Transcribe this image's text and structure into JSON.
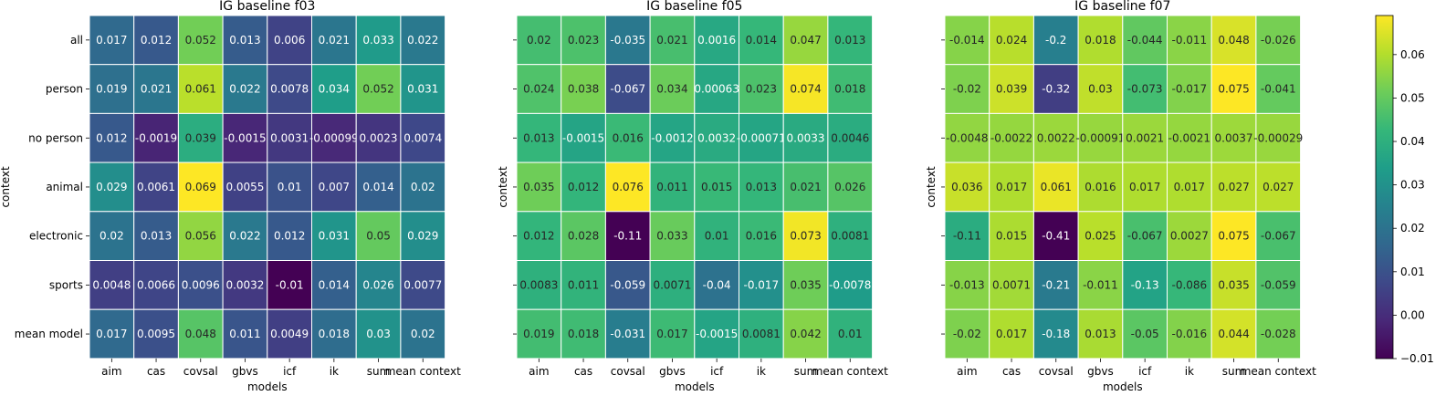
{
  "chart_data": [
    {
      "type": "heatmap",
      "title": "IG baseline f03",
      "xlabel": "models",
      "ylabel": "context",
      "categories_x": [
        "aim",
        "cas",
        "covsal",
        "gbvs",
        "icf",
        "ik",
        "sum",
        "mean context"
      ],
      "categories_y": [
        "all",
        "person",
        "no person",
        "animal",
        "electronic",
        "sports",
        "mean model"
      ],
      "values": [
        [
          0.017,
          0.012,
          0.052,
          0.013,
          0.006,
          0.021,
          0.033,
          0.022
        ],
        [
          0.019,
          0.021,
          0.061,
          0.022,
          0.0078,
          0.034,
          0.052,
          0.031
        ],
        [
          0.012,
          -0.0019,
          0.039,
          -0.0015,
          0.0031,
          -0.00099,
          0.0023,
          0.0074
        ],
        [
          0.029,
          0.0061,
          0.069,
          0.0055,
          0.01,
          0.007,
          0.014,
          0.02
        ],
        [
          0.02,
          0.013,
          0.056,
          0.022,
          0.012,
          0.031,
          0.05,
          0.029
        ],
        [
          0.0048,
          0.0066,
          0.0096,
          0.0032,
          -0.01,
          0.014,
          0.026,
          0.0077
        ],
        [
          0.017,
          0.0095,
          0.048,
          0.011,
          0.0049,
          0.018,
          0.03,
          0.02
        ]
      ],
      "labels": [
        [
          "0.017",
          "0.012",
          "0.052",
          "0.013",
          "0.006",
          "0.021",
          "0.033",
          "0.022"
        ],
        [
          "0.019",
          "0.021",
          "0.061",
          "0.022",
          "0.0078",
          "0.034",
          "0.052",
          "0.031"
        ],
        [
          "0.012",
          "-0.0019",
          "0.039",
          "-0.0015",
          "0.0031",
          "-0.00099",
          "0.0023",
          "0.0074"
        ],
        [
          "0.029",
          "0.0061",
          "0.069",
          "0.0055",
          "0.01",
          "0.007",
          "0.014",
          "0.02"
        ],
        [
          "0.02",
          "0.013",
          "0.056",
          "0.022",
          "0.012",
          "0.031",
          "0.05",
          "0.029"
        ],
        [
          "0.0048",
          "0.0066",
          "0.0096",
          "0.0032",
          "-0.01",
          "0.014",
          "0.026",
          "0.0077"
        ],
        [
          "0.017",
          "0.0095",
          "0.048",
          "0.011",
          "0.0049",
          "0.018",
          "0.03",
          "0.02"
        ]
      ],
      "vmin": -0.01,
      "vmax": 0.069,
      "colormap": "viridis"
    },
    {
      "type": "heatmap",
      "title": "IG baseline f05",
      "xlabel": "models",
      "ylabel": "context",
      "categories_x": [
        "aim",
        "cas",
        "covsal",
        "gbvs",
        "icf",
        "ik",
        "sum",
        "mean context"
      ],
      "categories_y": [
        "all",
        "person",
        "no person",
        "animal",
        "electronic",
        "sports",
        "mean model"
      ],
      "values": [
        [
          0.02,
          0.023,
          -0.035,
          0.021,
          0.0016,
          0.014,
          0.047,
          0.013
        ],
        [
          0.024,
          0.038,
          -0.067,
          0.034,
          0.00063,
          0.023,
          0.074,
          0.018
        ],
        [
          0.013,
          -0.0015,
          0.016,
          -0.0012,
          0.0032,
          -0.00071,
          0.0033,
          0.0046
        ],
        [
          0.035,
          0.012,
          0.076,
          0.011,
          0.015,
          0.013,
          0.021,
          0.026
        ],
        [
          0.012,
          0.028,
          -0.11,
          0.033,
          0.01,
          0.016,
          0.073,
          0.0081
        ],
        [
          0.0083,
          0.011,
          -0.059,
          0.0071,
          -0.04,
          -0.017,
          0.035,
          -0.0078
        ],
        [
          0.019,
          0.018,
          -0.031,
          0.017,
          -0.0015,
          0.0081,
          0.042,
          0.01
        ]
      ],
      "labels": [
        [
          "0.02",
          "0.023",
          "-0.035",
          "0.021",
          "0.0016",
          "0.014",
          "0.047",
          "0.013"
        ],
        [
          "0.024",
          "0.038",
          "-0.067",
          "0.034",
          "0.00063",
          "0.023",
          "0.074",
          "0.018"
        ],
        [
          "0.013",
          "-0.0015",
          "0.016",
          "-0.0012",
          "0.0032",
          "-0.00071",
          "0.0033",
          "0.0046"
        ],
        [
          "0.035",
          "0.012",
          "0.076",
          "0.011",
          "0.015",
          "0.013",
          "0.021",
          "0.026"
        ],
        [
          "0.012",
          "0.028",
          "-0.11",
          "0.033",
          "0.01",
          "0.016",
          "0.073",
          "0.0081"
        ],
        [
          "0.0083",
          "0.011",
          "-0.059",
          "0.0071",
          "-0.04",
          "-0.017",
          "0.035",
          "-0.0078"
        ],
        [
          "0.019",
          "0.018",
          "-0.031",
          "0.017",
          "-0.0015",
          "0.0081",
          "0.042",
          "0.01"
        ]
      ],
      "vmin": -0.11,
      "vmax": 0.076,
      "colormap": "viridis"
    },
    {
      "type": "heatmap",
      "title": "IG baseline f07",
      "xlabel": "models",
      "ylabel": "context",
      "categories_x": [
        "aim",
        "cas",
        "covsal",
        "gbvs",
        "icf",
        "ik",
        "sum",
        "mean context"
      ],
      "categories_y": [
        "all",
        "person",
        "no person",
        "animal",
        "electronic",
        "sports",
        "mean model"
      ],
      "values": [
        [
          -0.014,
          0.024,
          -0.2,
          0.018,
          -0.044,
          -0.011,
          0.048,
          -0.026
        ],
        [
          -0.02,
          0.039,
          -0.32,
          0.03,
          -0.073,
          -0.017,
          0.075,
          -0.041
        ],
        [
          -0.0048,
          -0.0022,
          0.0022,
          -0.00091,
          0.0021,
          -0.0021,
          0.0037,
          -0.00029
        ],
        [
          0.036,
          0.017,
          0.061,
          0.016,
          0.017,
          0.017,
          0.027,
          0.027
        ],
        [
          -0.11,
          0.015,
          -0.41,
          0.025,
          -0.067,
          0.0027,
          0.075,
          -0.067
        ],
        [
          -0.013,
          0.0071,
          -0.21,
          -0.011,
          -0.13,
          -0.086,
          0.035,
          -0.059
        ],
        [
          -0.02,
          0.017,
          -0.18,
          0.013,
          -0.05,
          -0.016,
          0.044,
          -0.028
        ]
      ],
      "labels": [
        [
          "-0.014",
          "0.024",
          "-0.2",
          "0.018",
          "-0.044",
          "-0.011",
          "0.048",
          "-0.026"
        ],
        [
          "-0.02",
          "0.039",
          "-0.32",
          "0.03",
          "-0.073",
          "-0.017",
          "0.075",
          "-0.041"
        ],
        [
          "-0.0048",
          "-0.0022",
          "0.0022",
          "-0.00091",
          "0.0021",
          "-0.0021",
          "0.0037",
          "-0.00029"
        ],
        [
          "0.036",
          "0.017",
          "0.061",
          "0.016",
          "0.017",
          "0.017",
          "0.027",
          "0.027"
        ],
        [
          "-0.11",
          "0.015",
          "-0.41",
          "0.025",
          "-0.067",
          "0.0027",
          "0.075",
          "-0.067"
        ],
        [
          "-0.013",
          "0.0071",
          "-0.21",
          "-0.011",
          "-0.13",
          "-0.086",
          "0.035",
          "-0.059"
        ],
        [
          "-0.02",
          "0.017",
          "-0.18",
          "0.013",
          "-0.05",
          "-0.016",
          "0.044",
          "-0.028"
        ]
      ],
      "vmin": -0.41,
      "vmax": 0.075,
      "colormap": "viridis"
    }
  ],
  "colorbar": {
    "vmin": -0.01,
    "vmax": 0.069,
    "ticks": [
      -0.01,
      0.0,
      0.01,
      0.02,
      0.03,
      0.04,
      0.05,
      0.06
    ],
    "tick_labels": [
      "−0.01",
      "0.00",
      "0.01",
      "0.02",
      "0.03",
      "0.04",
      "0.05",
      "0.06"
    ]
  }
}
